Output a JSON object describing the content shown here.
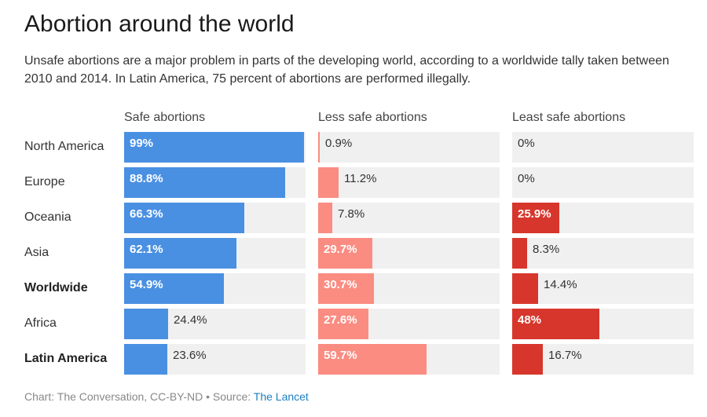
{
  "title": "Abortion around the world",
  "subtitle": "Unsafe abortions are a major problem in parts of the developing world, according to a worldwide tally taken between 2010 and 2014. In Latin America, 75 percent of abortions are performed illegally.",
  "footer": {
    "prefix": "Chart: The Conversation, CC-BY-ND • Source: ",
    "source_link": "The Lancet"
  },
  "colors": {
    "safe": "#4a90e2",
    "less_safe": "#fa8c82",
    "least_safe": "#d7362c",
    "track": "#f0f0f0"
  },
  "chart_data": {
    "type": "bar",
    "title": "Abortion around the world",
    "unit": "percent",
    "xlim": [
      0,
      100
    ],
    "categories": [
      "North America",
      "Europe",
      "Oceania",
      "Asia",
      "Worldwide",
      "Africa",
      "Latin America"
    ],
    "bold_categories": [
      "Worldwide",
      "Latin America"
    ],
    "series": [
      {
        "name": "Safe abortions",
        "values": [
          99,
          88.8,
          66.3,
          62.1,
          54.9,
          24.4,
          23.6
        ],
        "labels": [
          "99%",
          "88.8%",
          "66.3%",
          "62.1%",
          "54.9%",
          "24.4%",
          "23.6%"
        ]
      },
      {
        "name": "Less safe abortions",
        "values": [
          0.9,
          11.2,
          7.8,
          29.7,
          30.7,
          27.6,
          59.7
        ],
        "labels": [
          "0.9%",
          "11.2%",
          "7.8%",
          "29.7%",
          "30.7%",
          "27.6%",
          "59.7%"
        ]
      },
      {
        "name": "Least safe abortions",
        "values": [
          0,
          0,
          25.9,
          8.3,
          14.4,
          48,
          16.7
        ],
        "labels": [
          "0%",
          "0%",
          "25.9%",
          "8.3%",
          "14.4%",
          "48%",
          "16.7%"
        ]
      }
    ]
  }
}
